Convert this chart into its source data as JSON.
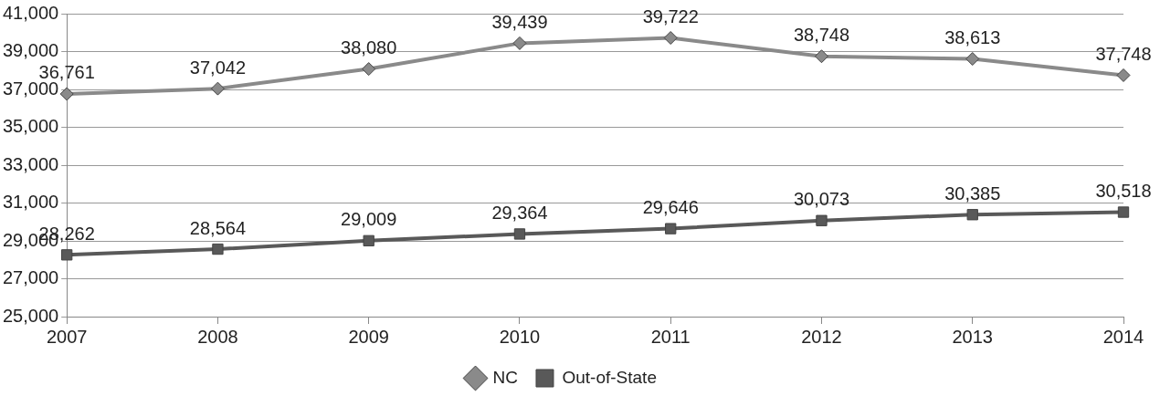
{
  "chart_data": {
    "type": "line",
    "categories": [
      "2007",
      "2008",
      "2009",
      "2010",
      "2011",
      "2012",
      "2013",
      "2014"
    ],
    "series": [
      {
        "name": "NC",
        "color": "#8a8a8a",
        "marker": "diamond",
        "values": [
          36761,
          37042,
          38080,
          39439,
          39722,
          38748,
          38613,
          37748
        ],
        "value_labels": [
          "36,761",
          "37,042",
          "38,080",
          "39,439",
          "39,722",
          "38,748",
          "38,613",
          "37,748"
        ]
      },
      {
        "name": "Out-of-State",
        "color": "#595959",
        "marker": "square",
        "values": [
          28262,
          28564,
          29009,
          29364,
          29646,
          30073,
          30385,
          30518
        ],
        "value_labels": [
          "28,262",
          "28,564",
          "29,009",
          "29,364",
          "29,646",
          "30,073",
          "30,385",
          "30,518"
        ]
      }
    ],
    "ylim": [
      25000,
      41000
    ],
    "yticks": [
      {
        "value": 25000,
        "label": "25,000"
      },
      {
        "value": 27000,
        "label": "27,000"
      },
      {
        "value": 29000,
        "label": "29,000"
      },
      {
        "value": 31000,
        "label": "31,000"
      },
      {
        "value": 33000,
        "label": "33,000"
      },
      {
        "value": 35000,
        "label": "35,000"
      },
      {
        "value": 37000,
        "label": "37,000"
      },
      {
        "value": 39000,
        "label": "39,000"
      },
      {
        "value": 41000,
        "label": "41,000"
      }
    ],
    "grid": "y",
    "legend": "bottom"
  }
}
